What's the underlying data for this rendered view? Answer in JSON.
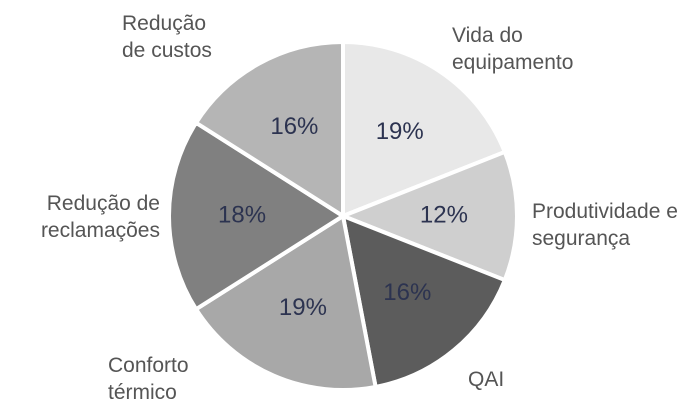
{
  "chart_data": {
    "type": "pie",
    "categories": [
      "Vida do equipamento",
      "Produtividade e segurança",
      "QAI",
      "Conforto térmico",
      "Redução de reclamações",
      "Redução de custos"
    ],
    "values": [
      19,
      12,
      16,
      19,
      18,
      16
    ],
    "value_labels": [
      "19%",
      "12%",
      "16%",
      "19%",
      "18%",
      "16%"
    ],
    "colors": [
      "#e8e8e8",
      "#cfcfcf",
      "#5c5c5c",
      "#a8a8a8",
      "#808080",
      "#b5b5b5"
    ]
  }
}
